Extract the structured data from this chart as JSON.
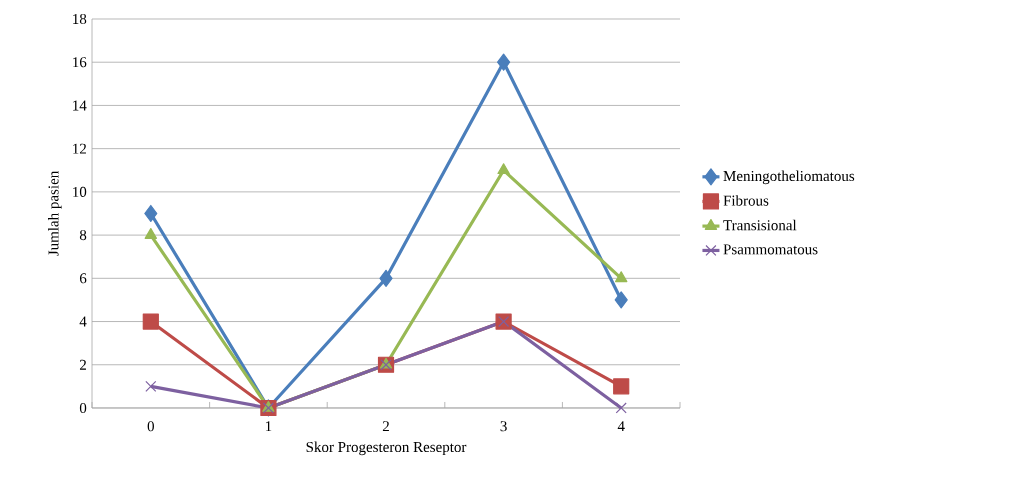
{
  "chart_data": {
    "type": "line",
    "xlabel": "Skor Progesteron Reseptor",
    "ylabel": "Jumlah pasien",
    "categories": [
      "0",
      "1",
      "2",
      "3",
      "4"
    ],
    "series": [
      {
        "name": "Meningotheliomatous",
        "color": "#4a7ebb",
        "marker": "diamond",
        "values": [
          9,
          0,
          6,
          16,
          5
        ]
      },
      {
        "name": "Fibrous",
        "color": "#be4b48",
        "marker": "square",
        "values": [
          4,
          0,
          2,
          4,
          1
        ]
      },
      {
        "name": "Transisional",
        "color": "#98b954",
        "marker": "triangle",
        "values": [
          8,
          0,
          2,
          11,
          6
        ]
      },
      {
        "name": "Psammomatous",
        "color": "#7d60a0",
        "marker": "cross",
        "values": [
          1,
          0,
          2,
          4,
          0
        ]
      }
    ],
    "ylim": [
      0,
      18
    ],
    "yticks": [
      0,
      2,
      4,
      6,
      8,
      10,
      12,
      14,
      16,
      18
    ],
    "grid": "y",
    "legend": "right",
    "line_style": "solid"
  }
}
